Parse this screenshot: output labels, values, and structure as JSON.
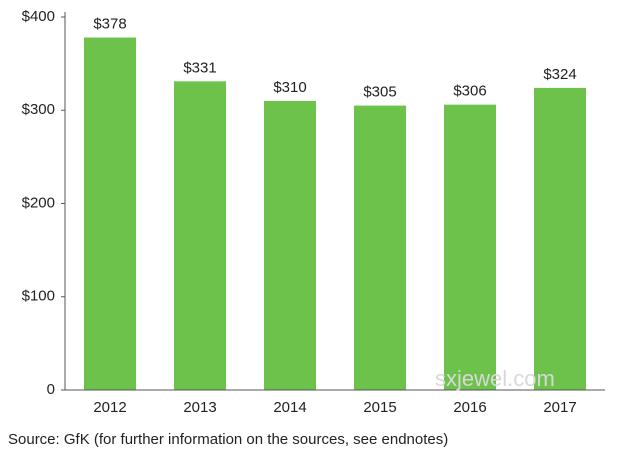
{
  "chart_data": {
    "type": "bar",
    "categories": [
      "2012",
      "2013",
      "2014",
      "2015",
      "2016",
      "2017"
    ],
    "values": [
      378,
      331,
      310,
      305,
      306,
      324
    ],
    "value_labels": [
      "$378",
      "$331",
      "$310",
      "$305",
      "$306",
      "$324"
    ],
    "color": "#6cc24a",
    "ylim": [
      0,
      400
    ],
    "yticks": [
      0,
      {
        "value": 100,
        "label": "$100"
      },
      {
        "value": 200,
        "label": "$200"
      },
      {
        "value": 300,
        "label": "$300"
      },
      {
        "value": 400,
        "label": "$400"
      }
    ],
    "grid": false,
    "source": "Source: GfK (for further information on the sources, see endnotes)",
    "watermark": "sxjewel.com"
  }
}
